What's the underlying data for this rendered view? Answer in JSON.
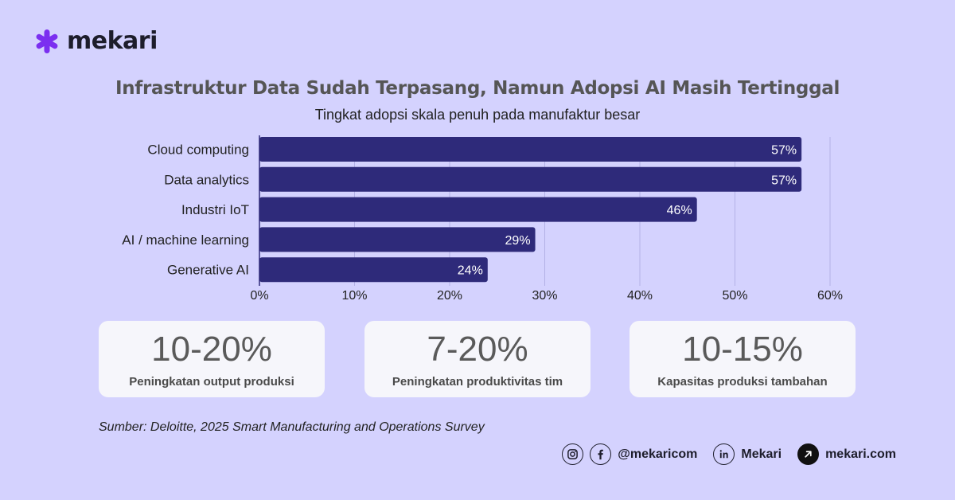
{
  "brand": {
    "name": "mekari",
    "color": "#7b2ff0"
  },
  "header": {
    "title": "Infrastruktur Data Sudah Terpasang, Namun Adopsi AI Masih Tertinggal",
    "subtitle": "Tingkat adopsi skala penuh pada manufaktur besar"
  },
  "chart_data": {
    "type": "bar",
    "orientation": "horizontal",
    "categories": [
      "Cloud computing",
      "Data analytics",
      "Industri IoT",
      "AI / machine learning",
      "Generative AI"
    ],
    "values": [
      57,
      57,
      46,
      29,
      24
    ],
    "data_labels": [
      "57%",
      "57%",
      "46%",
      "29%",
      "24%"
    ],
    "xlim": [
      0,
      60
    ],
    "x_ticks": [
      "0%",
      "10%",
      "20%",
      "30%",
      "40%",
      "50%",
      "60%"
    ],
    "grid": true,
    "bar_color": "#2e2a7a"
  },
  "stats": [
    {
      "value": "10-20%",
      "label": "Peningkatan output produksi"
    },
    {
      "value": "7-20%",
      "label": "Peningkatan produktivitas tim"
    },
    {
      "value": "10-15%",
      "label": "Kapasitas produksi tambahan"
    }
  ],
  "source": "Sumber: Deloitte, 2025 Smart Manufacturing and Operations Survey",
  "footer": {
    "social_handle": "@mekaricom",
    "linkedin_name": "Mekari",
    "website": "mekari.com",
    "icons": [
      "instagram-icon",
      "facebook-icon",
      "linkedin-icon",
      "arrow-link-icon"
    ]
  }
}
